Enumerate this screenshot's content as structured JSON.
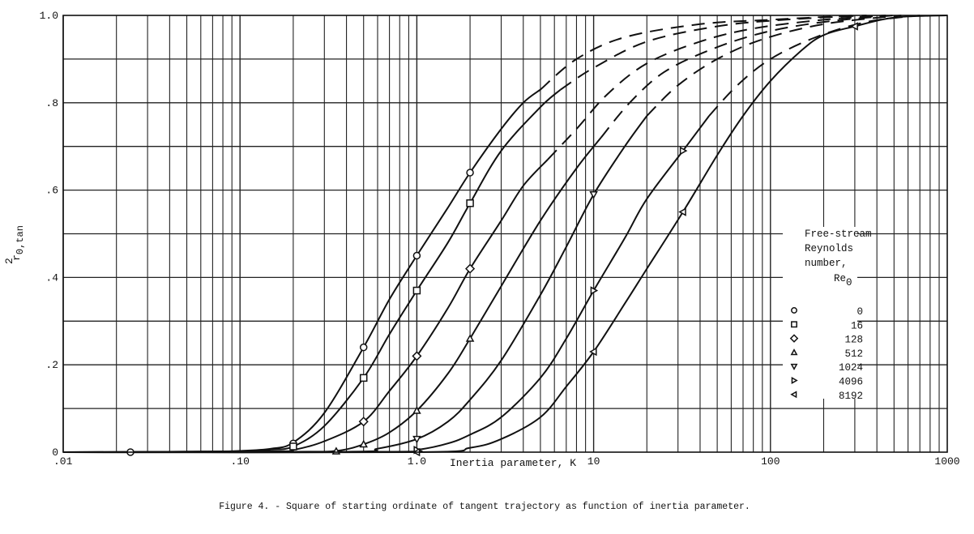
{
  "figure": {
    "caption": "Figure 4. - Square of starting ordinate of tangent trajectory as function of inertia parameter."
  },
  "chart_data": {
    "type": "line",
    "title": "Figure 4. - Square of starting ordinate of tangent trajectory as function of inertia parameter.",
    "xlabel": "Inertia parameter, K",
    "ylabel": "r0,tan^2",
    "xscale": "log",
    "xlim": [
      0.01,
      1000
    ],
    "ylim": [
      0,
      1.0
    ],
    "x_ticks": [
      ".01",
      ".10",
      "1.0",
      "10",
      "100",
      "1000"
    ],
    "y_ticks": [
      "0",
      ".2",
      ".4",
      ".6",
      ".8",
      "1.0"
    ],
    "grid": true,
    "legend": {
      "title_lines": [
        "Free-stream",
        "Reynolds",
        "number,",
        "Re0"
      ],
      "position": "right-inside"
    },
    "series": [
      {
        "name": "0",
        "marker": "circle",
        "solid": [
          [
            0.01,
            0
          ],
          [
            0.05,
            0
          ],
          [
            0.1,
            0.003
          ],
          [
            0.15,
            0.008
          ],
          [
            0.2,
            0.022
          ],
          [
            0.3,
            0.09
          ],
          [
            0.5,
            0.24
          ],
          [
            0.7,
            0.35
          ],
          [
            1.0,
            0.45
          ],
          [
            1.5,
            0.56
          ],
          [
            2.0,
            0.64
          ],
          [
            3.0,
            0.74
          ],
          [
            4.0,
            0.8
          ],
          [
            5.0,
            0.83
          ]
        ],
        "dashed": [
          [
            5.0,
            0.83
          ],
          [
            8,
            0.9
          ],
          [
            15,
            0.95
          ],
          [
            40,
            0.98
          ],
          [
            100,
            0.99
          ],
          [
            300,
            1.0
          ]
        ],
        "markers": [
          [
            0.024,
            0
          ],
          [
            0.2,
            0.02
          ],
          [
            0.5,
            0.24
          ],
          [
            1.0,
            0.45
          ],
          [
            2.0,
            0.64
          ]
        ]
      },
      {
        "name": "16",
        "marker": "square",
        "solid": [
          [
            0.01,
            0
          ],
          [
            0.1,
            0.002
          ],
          [
            0.15,
            0.006
          ],
          [
            0.2,
            0.013
          ],
          [
            0.3,
            0.06
          ],
          [
            0.5,
            0.17
          ],
          [
            0.7,
            0.27
          ],
          [
            1.0,
            0.37
          ],
          [
            1.5,
            0.48
          ],
          [
            2.0,
            0.57
          ],
          [
            3.0,
            0.69
          ],
          [
            5.0,
            0.79
          ],
          [
            6.5,
            0.83
          ]
        ],
        "dashed": [
          [
            6.5,
            0.83
          ],
          [
            10,
            0.88
          ],
          [
            20,
            0.94
          ],
          [
            50,
            0.975
          ],
          [
            120,
            0.99
          ],
          [
            350,
            1.0
          ]
        ],
        "markers": [
          [
            0.2,
            0.013
          ],
          [
            0.5,
            0.17
          ],
          [
            1.0,
            0.37
          ],
          [
            2.0,
            0.57
          ]
        ]
      },
      {
        "name": "128",
        "marker": "diamond",
        "solid": [
          [
            0.01,
            0
          ],
          [
            0.15,
            0.002
          ],
          [
            0.2,
            0.005
          ],
          [
            0.3,
            0.025
          ],
          [
            0.5,
            0.07
          ],
          [
            0.7,
            0.14
          ],
          [
            1.0,
            0.22
          ],
          [
            1.5,
            0.33
          ],
          [
            2.0,
            0.42
          ],
          [
            3.0,
            0.53
          ],
          [
            4.0,
            0.61
          ],
          [
            5.5,
            0.67
          ]
        ],
        "dashed": [
          [
            5.5,
            0.67
          ],
          [
            8,
            0.74
          ],
          [
            12,
            0.82
          ],
          [
            20,
            0.89
          ],
          [
            40,
            0.94
          ],
          [
            80,
            0.97
          ],
          [
            200,
            0.99
          ],
          [
            450,
            1.0
          ]
        ],
        "markers": [
          [
            0.5,
            0.07
          ],
          [
            1.0,
            0.22
          ],
          [
            2.0,
            0.42
          ]
        ]
      },
      {
        "name": "512",
        "marker": "triangle-up",
        "solid": [
          [
            0.01,
            0
          ],
          [
            0.2,
            0.001
          ],
          [
            0.35,
            0.003
          ],
          [
            0.5,
            0.018
          ],
          [
            0.7,
            0.045
          ],
          [
            1.0,
            0.095
          ],
          [
            1.5,
            0.18
          ],
          [
            2.0,
            0.26
          ],
          [
            3.0,
            0.38
          ],
          [
            5.0,
            0.53
          ],
          [
            8.0,
            0.65
          ],
          [
            11,
            0.72
          ]
        ],
        "dashed": [
          [
            11,
            0.72
          ],
          [
            16,
            0.8
          ],
          [
            25,
            0.87
          ],
          [
            45,
            0.92
          ],
          [
            90,
            0.96
          ],
          [
            200,
            0.985
          ],
          [
            500,
            1.0
          ]
        ],
        "markers": [
          [
            0.35,
            0.002
          ],
          [
            0.5,
            0.018
          ],
          [
            1.0,
            0.095
          ],
          [
            2.0,
            0.26
          ]
        ]
      },
      {
        "name": "1024",
        "marker": "triangle-down",
        "solid": [
          [
            0.01,
            0
          ],
          [
            0.4,
            0.001
          ],
          [
            0.6,
            0.008
          ],
          [
            1.0,
            0.03
          ],
          [
            1.5,
            0.07
          ],
          [
            2.0,
            0.12
          ],
          [
            3.0,
            0.21
          ],
          [
            5.0,
            0.36
          ],
          [
            7.0,
            0.47
          ],
          [
            10,
            0.59
          ],
          [
            15,
            0.7
          ],
          [
            20,
            0.77
          ]
        ],
        "dashed": [
          [
            20,
            0.77
          ],
          [
            30,
            0.84
          ],
          [
            50,
            0.9
          ],
          [
            90,
            0.945
          ],
          [
            200,
            0.98
          ],
          [
            550,
            1.0
          ]
        ],
        "markers": [
          [
            1.0,
            0.03
          ],
          [
            10,
            0.59
          ]
        ]
      },
      {
        "name": "4096",
        "marker": "triangle-right",
        "solid": [
          [
            0.01,
            0
          ],
          [
            0.7,
            0.001
          ],
          [
            1.0,
            0.005
          ],
          [
            1.5,
            0.02
          ],
          [
            2.0,
            0.04
          ],
          [
            3.0,
            0.08
          ],
          [
            5.0,
            0.17
          ],
          [
            7.0,
            0.26
          ],
          [
            10,
            0.37
          ],
          [
            15,
            0.49
          ],
          [
            20,
            0.58
          ],
          [
            32,
            0.69
          ],
          [
            45,
            0.77
          ]
        ],
        "dashed": [
          [
            45,
            0.77
          ],
          [
            65,
            0.84
          ],
          [
            100,
            0.9
          ],
          [
            180,
            0.95
          ],
          [
            350,
            0.985
          ],
          [
            700,
            1.0
          ]
        ],
        "markers": [
          [
            1.0,
            0.005
          ],
          [
            10,
            0.37
          ],
          [
            32,
            0.69
          ]
        ]
      },
      {
        "name": "8192",
        "marker": "triangle-left",
        "solid": [
          [
            0.01,
            0
          ],
          [
            1.0,
            0.0
          ],
          [
            2.0,
            0.01
          ],
          [
            3.0,
            0.03
          ],
          [
            5.0,
            0.08
          ],
          [
            7.0,
            0.15
          ],
          [
            10,
            0.23
          ],
          [
            15,
            0.34
          ],
          [
            20,
            0.42
          ],
          [
            32,
            0.55
          ],
          [
            50,
            0.68
          ],
          [
            70,
            0.77
          ],
          [
            100,
            0.85
          ],
          [
            150,
            0.92
          ],
          [
            200,
            0.955
          ],
          [
            300,
            0.975
          ],
          [
            500,
            0.995
          ],
          [
            1000,
            1.0
          ]
        ],
        "dashed": [],
        "markers": [
          [
            1.0,
            0.0
          ],
          [
            10,
            0.23
          ],
          [
            32,
            0.55
          ],
          [
            300,
            0.975
          ]
        ]
      }
    ]
  }
}
